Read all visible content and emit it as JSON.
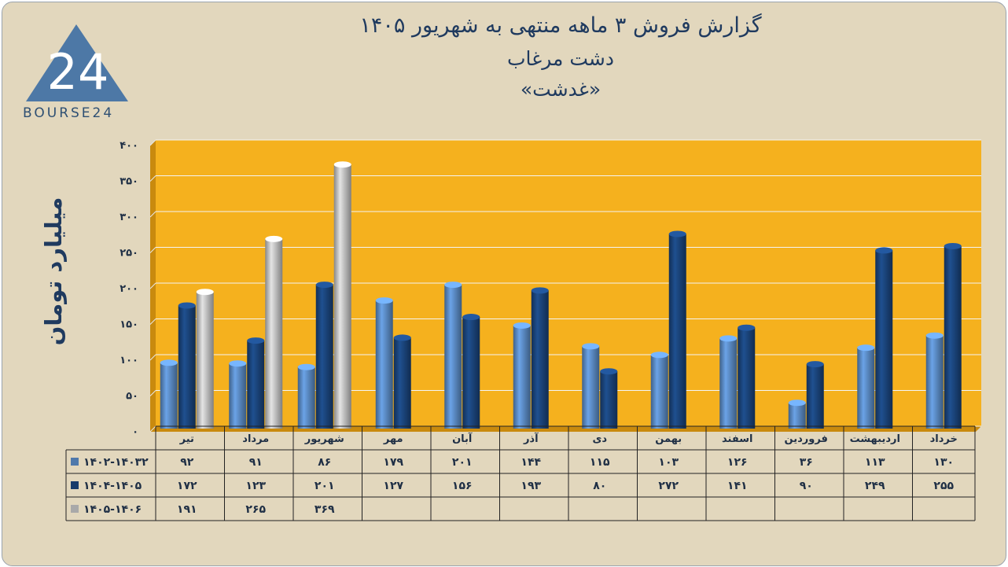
{
  "header": {
    "title_line1": "گزارش  فروش ۳ ماهه منتهی به شهریور ۱۴۰۵",
    "title_line2": "دشت مرغاب",
    "title_line3": "«غدشت»"
  },
  "logo": {
    "text": "BOURSE24",
    "mark": "24"
  },
  "colors": {
    "series1": "#4f79ab",
    "series2": "#173b6b",
    "series3": "#a9a9a9",
    "plot_bg": "#f5b11e",
    "frame_bg": "#e2d7bd"
  },
  "chart_data": {
    "type": "bar",
    "ylabel": "میلیارد تومان",
    "ylim": [
      0,
      400
    ],
    "yticks": [
      0,
      50,
      100,
      150,
      200,
      250,
      300,
      350,
      400
    ],
    "ytick_labels": [
      "۰",
      "۵۰",
      "۱۰۰",
      "۱۵۰",
      "۲۰۰",
      "۲۵۰",
      "۳۰۰",
      "۳۵۰",
      "۴۰۰"
    ],
    "grid": true,
    "legend": "table-left",
    "categories": [
      "تیر",
      "مرداد",
      "شهریور",
      "مهر",
      "آبان",
      "آذر",
      "دی",
      "بهمن",
      "اسفند",
      "فروردین",
      "اردیبهشت",
      "خرداد"
    ],
    "series": [
      {
        "name": "۱۴۰۲-۱۴۰۳۲",
        "values": [
          92,
          91,
          86,
          179,
          201,
          144,
          115,
          103,
          126,
          36,
          113,
          130
        ],
        "labels": [
          "۹۲",
          "۹۱",
          "۸۶",
          "۱۷۹",
          "۲۰۱",
          "۱۴۴",
          "۱۱۵",
          "۱۰۳",
          "۱۲۶",
          "۳۶",
          "۱۱۳",
          "۱۳۰"
        ]
      },
      {
        "name": "۱۴۰۴-۱۴۰۵",
        "values": [
          172,
          123,
          201,
          127,
          156,
          193,
          80,
          272,
          141,
          90,
          249,
          255
        ],
        "labels": [
          "۱۷۲",
          "۱۲۳",
          "۲۰۱",
          "۱۲۷",
          "۱۵۶",
          "۱۹۳",
          "۸۰",
          "۲۷۲",
          "۱۴۱",
          "۹۰",
          "۲۴۹",
          "۲۵۵"
        ]
      },
      {
        "name": "۱۴۰۵-۱۴۰۶",
        "values": [
          191,
          265,
          369,
          null,
          null,
          null,
          null,
          null,
          null,
          null,
          null,
          null
        ],
        "labels": [
          "۱۹۱",
          "۲۶۵",
          "۳۶۹",
          "",
          "",
          "",
          "",
          "",
          "",
          "",
          "",
          ""
        ]
      }
    ]
  }
}
